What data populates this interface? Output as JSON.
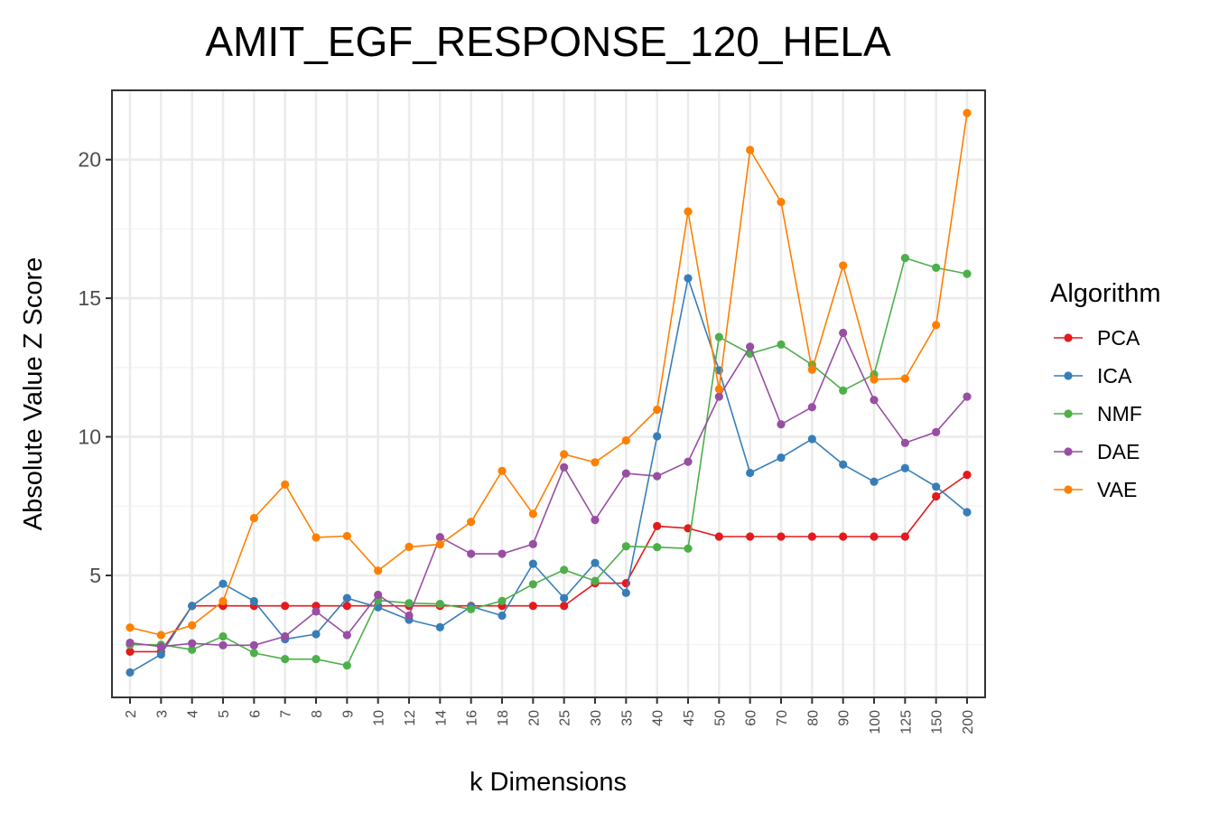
{
  "chart_data": {
    "type": "line",
    "title": "AMIT_EGF_RESPONSE_120_HELA",
    "xlabel": "k Dimensions",
    "ylabel": "Absolute Value Z Score",
    "categories": [
      "2",
      "3",
      "4",
      "5",
      "6",
      "7",
      "8",
      "9",
      "10",
      "12",
      "14",
      "16",
      "18",
      "20",
      "25",
      "30",
      "35",
      "40",
      "45",
      "50",
      "60",
      "70",
      "80",
      "90",
      "100",
      "125",
      "150",
      "200"
    ],
    "ylim": [
      0.6,
      22.5
    ],
    "yticks": [
      5,
      10,
      15,
      20
    ],
    "ytick_labels": [
      "5",
      "10",
      "15",
      "20"
    ],
    "grid": true,
    "legend": {
      "title": "Algorithm",
      "placement": "right"
    },
    "series": [
      {
        "name": "PCA",
        "color": "#e41a1c",
        "values": [
          2.25,
          2.25,
          3.9,
          3.9,
          3.9,
          3.9,
          3.9,
          3.9,
          3.9,
          3.9,
          3.9,
          3.9,
          3.9,
          3.9,
          3.9,
          4.72,
          4.72,
          6.78,
          6.7,
          6.4,
          6.4,
          6.4,
          6.4,
          6.4,
          6.4,
          6.4,
          7.85,
          8.63
        ]
      },
      {
        "name": "ICA",
        "color": "#377eb8",
        "values": [
          1.5,
          2.15,
          3.9,
          4.7,
          4.07,
          2.7,
          2.88,
          4.18,
          3.85,
          3.4,
          3.13,
          3.88,
          3.55,
          5.42,
          4.18,
          5.45,
          4.37,
          10.02,
          15.72,
          12.4,
          8.7,
          9.25,
          9.92,
          9.0,
          8.38,
          8.87,
          8.2,
          7.28
        ]
      },
      {
        "name": "NMF",
        "color": "#4daf4a",
        "values": [
          2.5,
          2.5,
          2.32,
          2.8,
          2.2,
          1.98,
          1.98,
          1.75,
          4.1,
          4.0,
          3.97,
          3.78,
          4.08,
          4.68,
          5.2,
          4.8,
          6.05,
          6.02,
          5.97,
          13.6,
          13.0,
          13.33,
          12.6,
          11.67,
          12.25,
          16.45,
          16.1,
          15.88
        ]
      },
      {
        "name": "DAE",
        "color": "#984ea3",
        "values": [
          2.57,
          2.43,
          2.55,
          2.48,
          2.48,
          2.8,
          3.7,
          2.85,
          4.3,
          3.55,
          6.38,
          5.78,
          5.78,
          6.13,
          8.9,
          7.0,
          8.68,
          8.58,
          9.1,
          11.45,
          13.25,
          10.45,
          11.07,
          13.75,
          11.33,
          9.78,
          10.17,
          11.45
        ]
      },
      {
        "name": "VAE",
        "color": "#ff7f00",
        "values": [
          3.12,
          2.85,
          3.2,
          4.07,
          7.07,
          8.28,
          6.37,
          6.42,
          5.17,
          6.03,
          6.12,
          6.93,
          8.77,
          7.22,
          9.37,
          9.08,
          9.87,
          10.98,
          18.13,
          11.72,
          20.35,
          18.47,
          12.42,
          16.18,
          12.07,
          12.1,
          14.03,
          21.68
        ]
      }
    ]
  }
}
